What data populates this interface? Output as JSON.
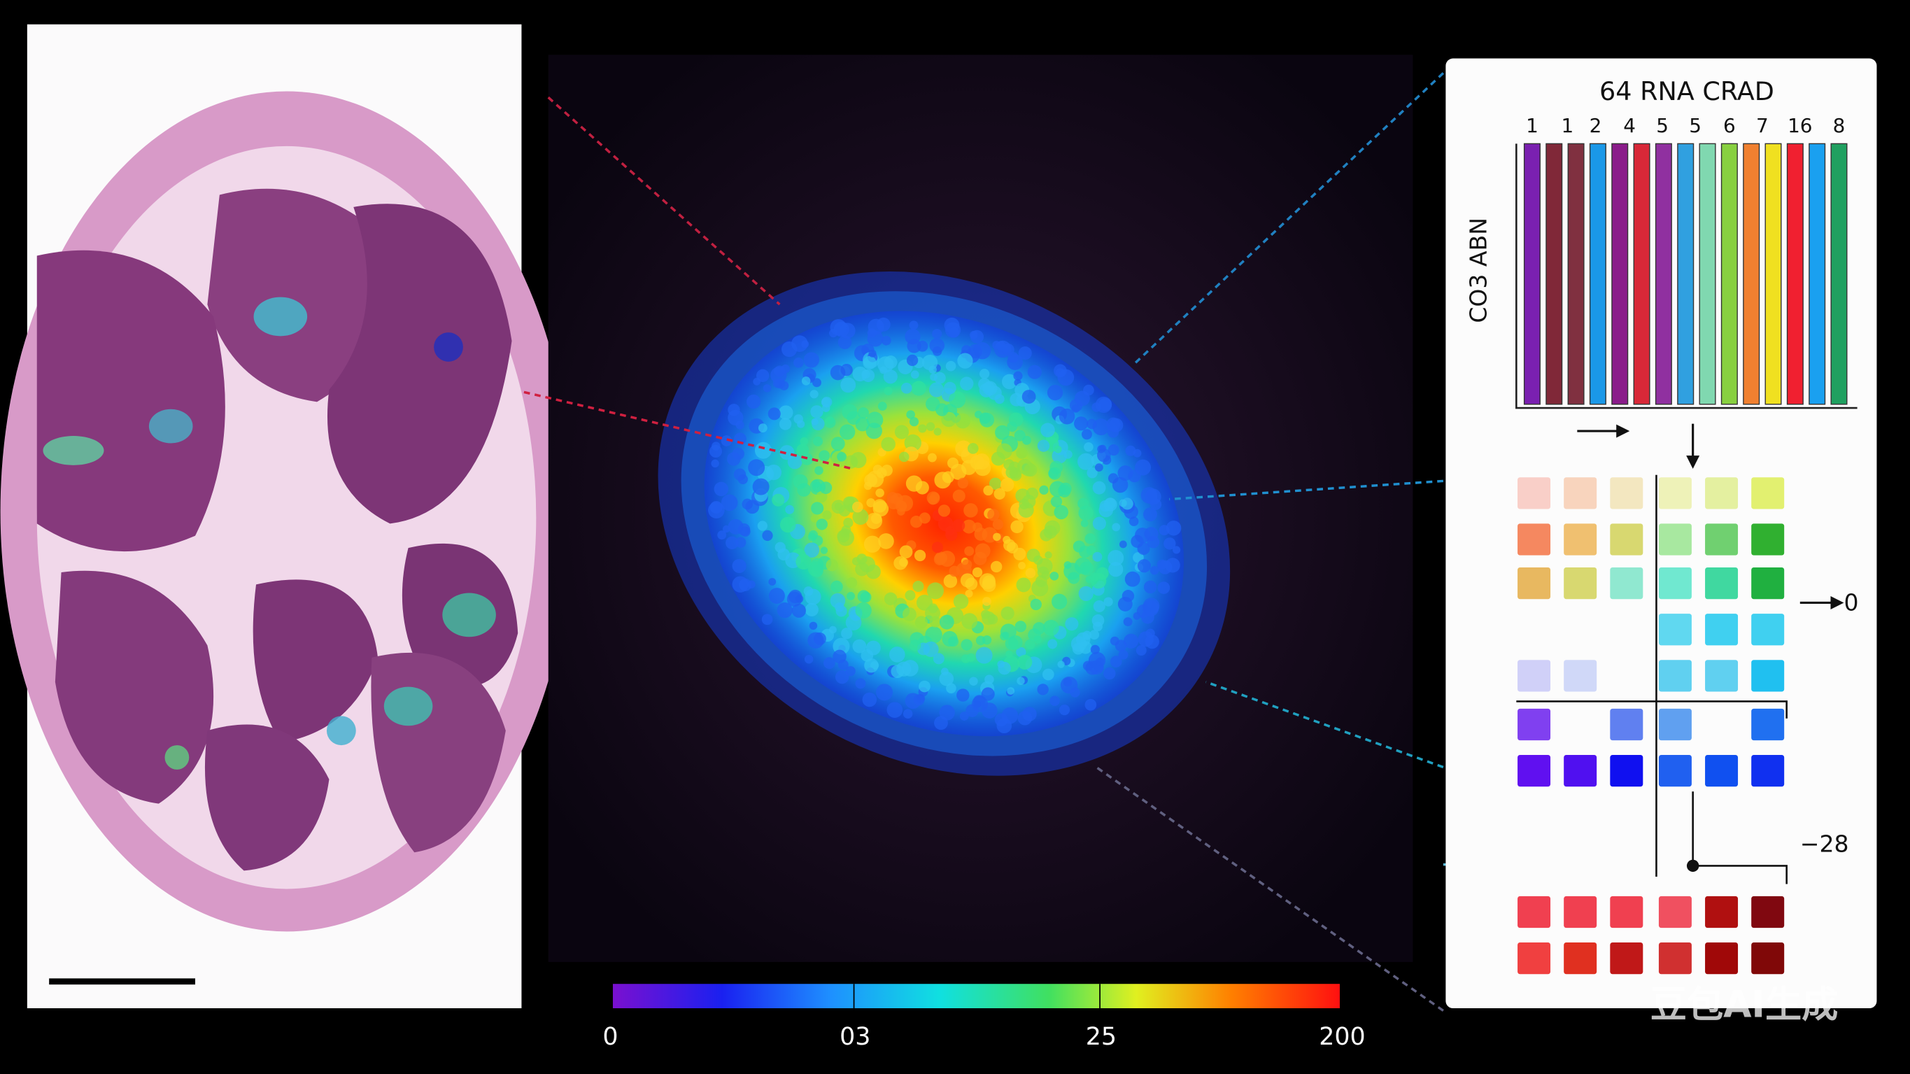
{
  "panel_title": "64 RNA CRAD",
  "column_labels": [
    "1",
    "1",
    "2",
    "4",
    "5",
    "5",
    "6",
    "7",
    "16",
    "8"
  ],
  "y_axis_label": "CO3 ABN",
  "annotations": [
    "0",
    "−28"
  ],
  "colorbar_labels": [
    "0",
    "03",
    "25",
    "200"
  ],
  "watermark": "豆包AI生成"
}
